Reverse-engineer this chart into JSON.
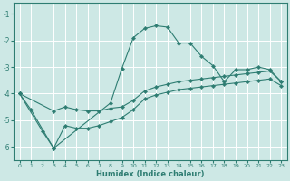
{
  "title": "",
  "xlabel": "Humidex (Indice chaleur)",
  "xlim": [
    -0.5,
    23.5
  ],
  "ylim": [
    -6.5,
    -0.6
  ],
  "yticks": [
    -6,
    -5,
    -4,
    -3,
    -2,
    -1
  ],
  "xticks": [
    0,
    1,
    2,
    3,
    4,
    5,
    6,
    7,
    8,
    9,
    10,
    11,
    12,
    13,
    14,
    15,
    16,
    17,
    18,
    19,
    20,
    21,
    22,
    23
  ],
  "bg_color": "#cde8e5",
  "line_color": "#2e7d72",
  "grid_color": "#ffffff",
  "series1": {
    "x": [
      0,
      1,
      3,
      8,
      9,
      10,
      11,
      12,
      13,
      14,
      15,
      16,
      17,
      18,
      19,
      20,
      21,
      22,
      23
    ],
    "y": [
      -4.0,
      -4.6,
      -6.05,
      -4.35,
      -3.05,
      -1.9,
      -1.55,
      -1.45,
      -1.5,
      -2.1,
      -2.1,
      -2.6,
      -2.95,
      -3.55,
      -3.1,
      -3.1,
      -3.0,
      -3.1,
      -3.55
    ]
  },
  "series2": {
    "x": [
      0,
      3,
      4,
      5,
      6,
      7,
      8,
      9,
      10,
      11,
      12,
      13,
      14,
      15,
      16,
      17,
      18,
      19,
      20,
      21,
      22,
      23
    ],
    "y": [
      -4.0,
      -4.65,
      -4.5,
      -4.6,
      -4.65,
      -4.65,
      -4.55,
      -4.5,
      -4.25,
      -3.9,
      -3.75,
      -3.65,
      -3.55,
      -3.5,
      -3.45,
      -3.4,
      -3.35,
      -3.3,
      -3.25,
      -3.2,
      -3.15,
      -3.55
    ]
  },
  "series3": {
    "x": [
      0,
      2,
      3,
      4,
      5,
      6,
      7,
      8,
      9,
      10,
      11,
      12,
      13,
      14,
      15,
      16,
      17,
      18,
      19,
      20,
      21,
      22,
      23
    ],
    "y": [
      -4.0,
      -5.4,
      -6.05,
      -5.2,
      -5.3,
      -5.3,
      -5.2,
      -5.05,
      -4.9,
      -4.6,
      -4.2,
      -4.05,
      -3.95,
      -3.85,
      -3.8,
      -3.75,
      -3.7,
      -3.65,
      -3.6,
      -3.55,
      -3.5,
      -3.45,
      -3.7
    ]
  }
}
